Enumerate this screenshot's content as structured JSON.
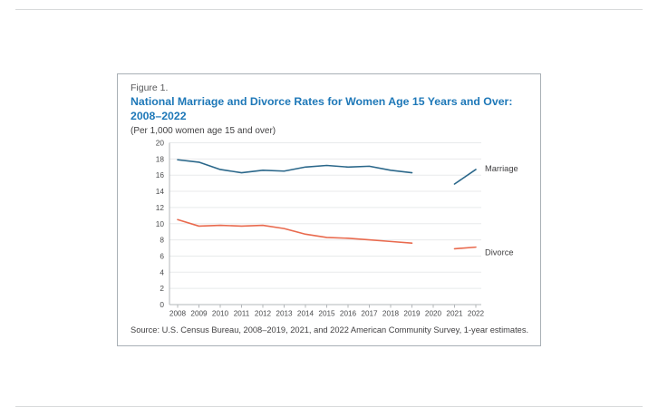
{
  "figure": {
    "label": "Figure 1.",
    "title_line1": "National Marriage and Divorce Rates for Women Age 15 Years and Over:",
    "title_line2": "2008–2022",
    "subtitle": "(Per 1,000 women age 15 and over)",
    "source": "Source: U.S. Census Bureau, 2008–2019, 2021, and 2022 American Community Survey, 1-year estimates."
  },
  "chart_data": {
    "type": "line",
    "x": [
      2008,
      2009,
      2010,
      2011,
      2012,
      2013,
      2014,
      2015,
      2016,
      2017,
      2018,
      2019,
      2020,
      2021,
      2022
    ],
    "series": [
      {
        "name": "Marriage",
        "color": "#2a678a",
        "values": [
          17.9,
          17.6,
          16.7,
          16.3,
          16.6,
          16.5,
          17.0,
          17.2,
          17.0,
          17.1,
          16.6,
          16.3,
          null,
          14.9,
          16.7
        ]
      },
      {
        "name": "Divorce",
        "color": "#e96a4e",
        "values": [
          10.5,
          9.7,
          9.8,
          9.7,
          9.8,
          9.4,
          8.7,
          8.3,
          8.2,
          8.0,
          7.8,
          7.6,
          null,
          6.9,
          7.1
        ]
      }
    ],
    "ylim": [
      0,
      20
    ],
    "ytick_step": 2,
    "grid": "horizontal",
    "legend_position": "right-of-line",
    "data_gap_year": 2020
  },
  "colors": {
    "title_blue": "#1e78b8",
    "marriage_line": "#2a678a",
    "divorce_line": "#e96a4e",
    "box_border": "#a9b0b6",
    "gridline": "#e8eaeb",
    "axis": "#b3b7ba",
    "axis_text": "#4a4b4d"
  }
}
